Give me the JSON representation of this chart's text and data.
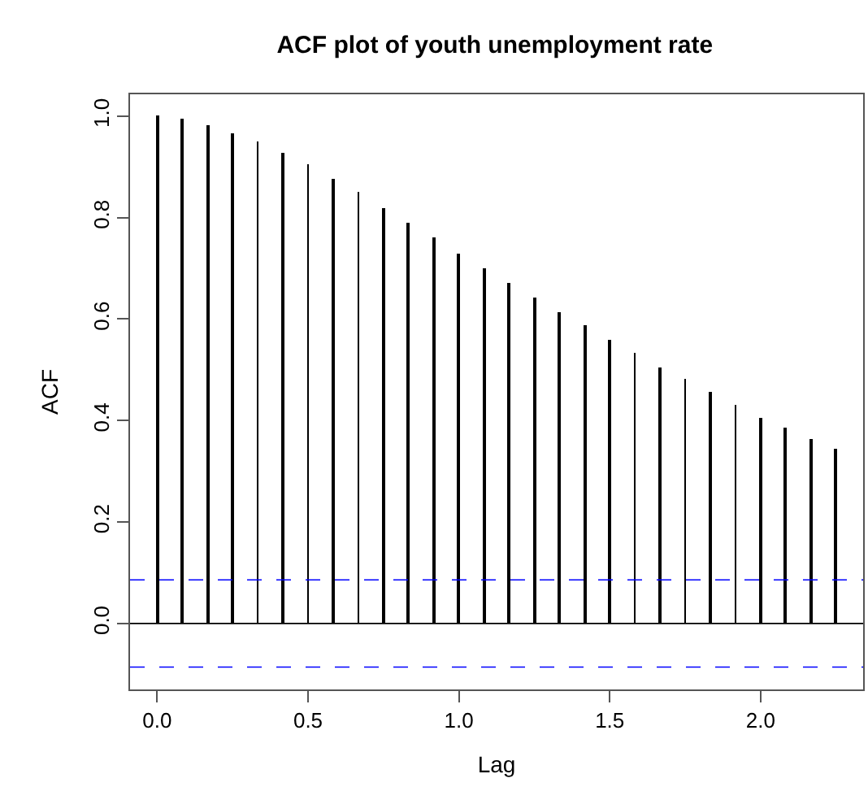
{
  "chart_data": {
    "type": "bar",
    "title": "ACF plot of youth unemployment rate",
    "xlabel": "Lag",
    "ylabel": "ACF",
    "x": [
      0,
      0.083,
      0.167,
      0.25,
      0.333,
      0.417,
      0.5,
      0.583,
      0.667,
      0.75,
      0.833,
      0.917,
      1,
      1.083,
      1.167,
      1.25,
      1.333,
      1.417,
      1.5,
      1.583,
      1.667,
      1.75,
      1.833,
      1.917,
      2,
      2.083,
      2.167,
      2.25
    ],
    "series": [
      {
        "color": "#000000",
        "values": [
          1.0,
          0.994,
          0.981,
          0.966,
          0.949,
          0.927,
          0.904,
          0.877,
          0.851,
          0.82,
          0.79,
          0.76,
          0.73,
          0.701,
          0.671,
          0.642,
          0.614,
          0.587,
          0.558,
          0.532,
          0.506,
          0.482,
          0.456,
          0.432,
          0.406,
          0.387,
          0.363,
          0.345
        ]
      }
    ],
    "xlim": [
      -0.09,
      2.34
    ],
    "ylim": [
      -0.13,
      1.043
    ],
    "xticks": [
      {
        "value": 0,
        "label": "0.0"
      },
      {
        "value": 0.5,
        "label": "0.5"
      },
      {
        "value": 1,
        "label": "1.0"
      },
      {
        "value": 1.5,
        "label": "1.5"
      },
      {
        "value": 2,
        "label": "2.0"
      }
    ],
    "yticks": [
      {
        "value": 0,
        "label": "0.0"
      },
      {
        "value": 0.2,
        "label": "0.2"
      },
      {
        "value": 0.4,
        "label": "0.4"
      },
      {
        "value": 0.6,
        "label": "0.6"
      },
      {
        "value": 0.8,
        "label": "0.8"
      },
      {
        "value": 1,
        "label": "1.0"
      }
    ],
    "ref_lines": [
      {
        "axis": "y",
        "value": 0,
        "color": "#000000",
        "line_style": "solid"
      },
      {
        "axis": "y",
        "value": 0.086,
        "color": "#0000ff",
        "line_style": "dashed"
      },
      {
        "axis": "y",
        "value": -0.086,
        "color": "#0000ff",
        "line_style": "dashed"
      }
    ]
  }
}
